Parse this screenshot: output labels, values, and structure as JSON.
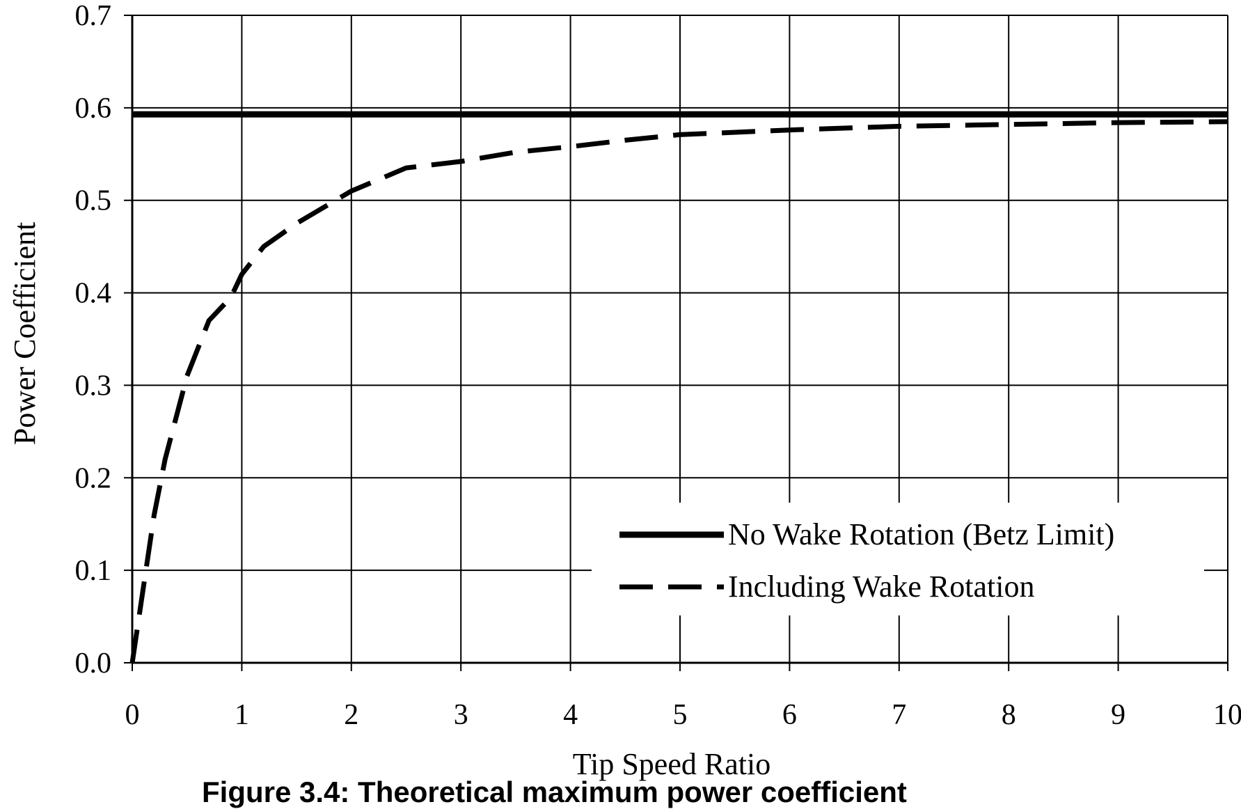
{
  "chart_data": {
    "type": "line",
    "xlabel": "Tip Speed Ratio",
    "ylabel": "Power Coefficient",
    "xlim": [
      0,
      10
    ],
    "ylim": [
      0,
      0.7
    ],
    "x_ticks": [
      "0",
      "1",
      "2",
      "3",
      "4",
      "5",
      "6",
      "7",
      "8",
      "9",
      "10"
    ],
    "y_ticks": [
      "0.0",
      "0.1",
      "0.2",
      "0.3",
      "0.4",
      "0.5",
      "0.6",
      "0.7"
    ],
    "grid": true,
    "legend_position": "bottom-right",
    "series": [
      {
        "name": "No Wake Rotation (Betz Limit)",
        "style": "solid",
        "color": "#000000",
        "x": [
          0,
          10
        ],
        "y": [
          0.593,
          0.593
        ]
      },
      {
        "name": "Including Wake Rotation",
        "style": "dashed",
        "color": "#000000",
        "x": [
          0,
          0.1,
          0.2,
          0.3,
          0.5,
          0.7,
          0.9,
          1.0,
          1.2,
          1.5,
          1.8,
          2.0,
          2.5,
          3.0,
          3.5,
          4.0,
          4.5,
          5.0,
          6.0,
          7.0,
          8.0,
          9.0,
          10.0
        ],
        "y": [
          0.0,
          0.08,
          0.16,
          0.22,
          0.31,
          0.37,
          0.395,
          0.42,
          0.45,
          0.475,
          0.496,
          0.51,
          0.535,
          0.542,
          0.552,
          0.558,
          0.565,
          0.571,
          0.576,
          0.58,
          0.582,
          0.584,
          0.585
        ]
      }
    ]
  },
  "caption": "Figure 3.4: Theoretical maximum power coefficient"
}
